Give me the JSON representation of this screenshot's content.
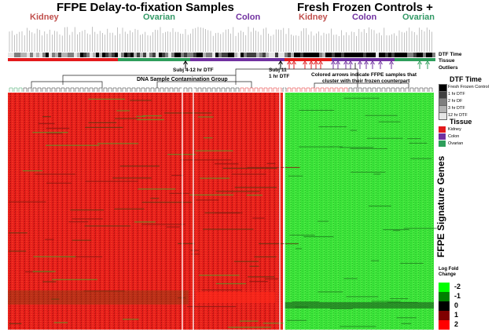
{
  "titles": {
    "left": "FFPE Delay-to-fixation Samples",
    "right": "Fresh Frozen Controls +"
  },
  "tissue_labels": [
    {
      "text": "Kidney",
      "color": "#c0504d"
    },
    {
      "text": "Ovarian",
      "color": "#339966"
    },
    {
      "text": "Colon",
      "color": "#7030a0"
    },
    {
      "text": "Kidney",
      "color": "#c0504d"
    },
    {
      "text": "Colon",
      "color": "#7030a0"
    },
    {
      "text": "Ovarian",
      "color": "#339966"
    }
  ],
  "row_labels": {
    "dtf_time": "DTF Time",
    "tissue": "Tissue",
    "outliers": "Outliers"
  },
  "annotations": {
    "subj_a": "Subj 4-12 hr DTF",
    "subj_b_line1": "Subj 11",
    "subj_b_line2": "1 hr DTF",
    "contamination": "DNA Sample Contamination Group",
    "arrows_note_line1": "Colored arrows indicate FFPE samples that",
    "arrows_note_line2": "cluster with their frozen counterpart"
  },
  "legend_dtf": {
    "title": "DTF Time",
    "items": [
      {
        "label": "Fresh Frozen Control",
        "color": "#000000"
      },
      {
        "label": "1 hr DTF",
        "color": "#404040"
      },
      {
        "label": "2 hr DF",
        "color": "#7f7f7f"
      },
      {
        "label": "3 hr DTF",
        "color": "#b3b3b3"
      },
      {
        "label": "12 hr DTF",
        "color": "#e6e6e6"
      }
    ]
  },
  "legend_tissue": {
    "title": "Tissue",
    "items": [
      {
        "label": "Kidney",
        "color": "#e31a1c"
      },
      {
        "label": "Colon",
        "color": "#7030a0"
      },
      {
        "label": "Ovarian",
        "color": "#2e9e5b"
      }
    ]
  },
  "vertical_title": "FFPE Signature Genes",
  "scale": {
    "title_line1": "Log Fold",
    "title_line2": "Change",
    "ticks": [
      "-2",
      "-1",
      "0",
      "1",
      "2"
    ],
    "colors": [
      "#00ff00",
      "#008000",
      "#000000",
      "#800000",
      "#ff0000"
    ]
  },
  "colors": {
    "heat_red": "#e8201c",
    "heat_green": "#3ce43a",
    "kidney": "#e31a1c",
    "colon": "#7030a0",
    "ovarian": "#2e9e5b",
    "highlight_box": "#ffffff"
  }
}
